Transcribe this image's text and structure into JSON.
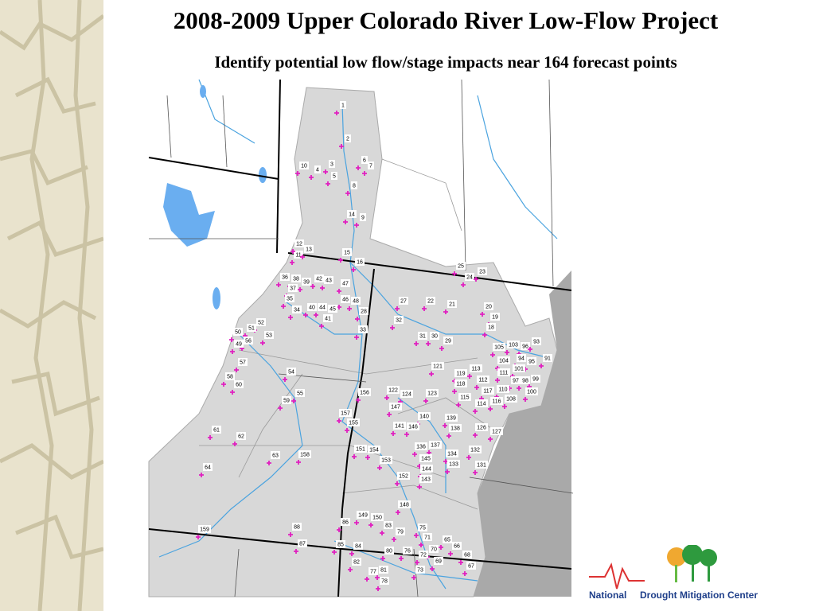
{
  "header": {
    "title": "2008-2009 Upper Colorado River Low-Flow Project",
    "subtitle": "Identify potential low flow/stage impacts near 164 forecast points"
  },
  "map": {
    "points": [
      "1",
      "2",
      "3",
      "4",
      "5",
      "6",
      "7",
      "8",
      "9",
      "10",
      "11",
      "12",
      "13",
      "14",
      "15",
      "16",
      "25",
      "24",
      "23",
      "36",
      "38",
      "39",
      "42",
      "43",
      "47",
      "37",
      "35",
      "46",
      "48",
      "34",
      "40",
      "44",
      "45",
      "41",
      "28",
      "27",
      "22",
      "21",
      "20",
      "19",
      "18",
      "32",
      "33",
      "31",
      "30",
      "29",
      "52",
      "51",
      "50",
      "53",
      "56",
      "49",
      "57",
      "105",
      "103",
      "96",
      "93",
      "91",
      "104",
      "94",
      "95",
      "121",
      "119",
      "113",
      "111",
      "101",
      "112",
      "118",
      "117",
      "97",
      "98",
      "99",
      "110",
      "100",
      "54",
      "58",
      "60",
      "55",
      "59",
      "156",
      "122",
      "124",
      "123",
      "115",
      "108",
      "116",
      "114",
      "147",
      "157",
      "155",
      "140",
      "139",
      "141",
      "146",
      "138",
      "126",
      "127",
      "61",
      "62",
      "136",
      "137",
      "151",
      "154",
      "153",
      "134",
      "132",
      "145",
      "63",
      "158",
      "131",
      "133",
      "144",
      "152",
      "143",
      "64",
      "148",
      "149",
      "150",
      "86",
      "83",
      "75",
      "79",
      "71",
      "88",
      "159",
      "65",
      "66",
      "87",
      "85",
      "84",
      "80",
      "76",
      "70",
      "72",
      "68",
      "69",
      "67",
      "82",
      "73",
      "81",
      "77",
      "78"
    ]
  },
  "logo": {
    "first": "National",
    "second": "Drought Mitigation Center"
  }
}
